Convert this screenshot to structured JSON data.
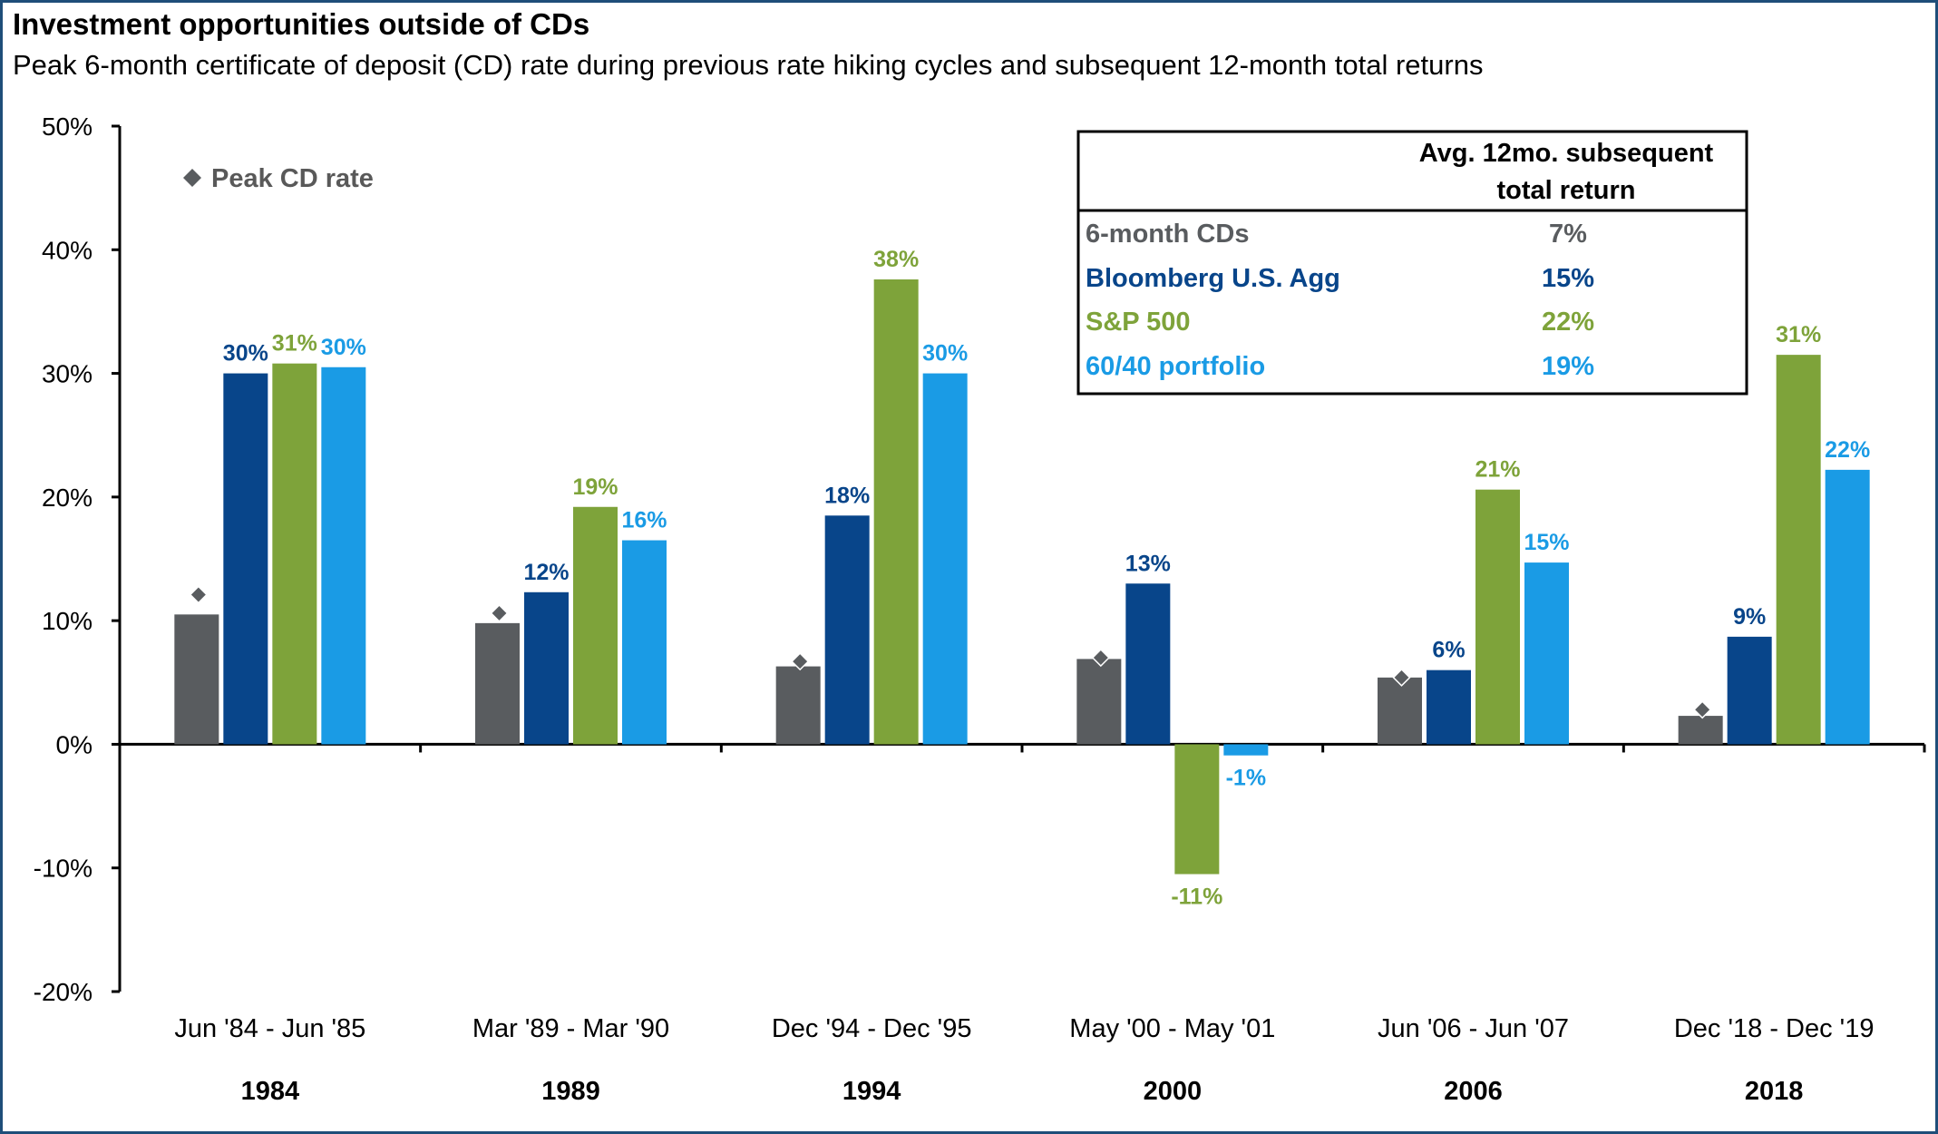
{
  "title": "Investment opportunities outside of CDs",
  "subtitle": "Peak 6-month certificate of deposit (CD) rate during previous rate hiking cycles and subsequent 12-month total returns",
  "colors": {
    "cds": "#595c5f",
    "agg": "#08458a",
    "sp500": "#7ea33a",
    "portfolio": "#1a9be5",
    "marker": "#595c5f"
  },
  "legend": {
    "marker_label": "Peak CD rate",
    "marker_icon": "diamond-icon"
  },
  "summary_box": {
    "header_line1": "Avg. 12mo. subsequent",
    "header_line2": "total return",
    "rows": [
      {
        "name": "6-month CDs",
        "value": "7%",
        "color_key": "cds"
      },
      {
        "name": "Bloomberg U.S. Agg",
        "value": "15%",
        "color_key": "agg"
      },
      {
        "name": "S&P 500",
        "value": "22%",
        "color_key": "sp500"
      },
      {
        "name": "60/40 portfolio",
        "value": "19%",
        "color_key": "portfolio"
      }
    ]
  },
  "chart_data": {
    "type": "bar",
    "title": "Investment opportunities outside of CDs",
    "subtitle": "Peak 6-month certificate of deposit (CD) rate during previous rate hiking cycles and subsequent 12-month total returns",
    "ylim": [
      -20,
      50
    ],
    "yticks": [
      50,
      40,
      30,
      20,
      10,
      0,
      -10,
      -20
    ],
    "ytick_labels": [
      "50%",
      "40%",
      "30%",
      "20%",
      "10%",
      "0%",
      "-10%",
      "-20%"
    ],
    "categories": [
      "Jun '84 - Jun '85",
      "Mar '89 - Mar '90",
      "Dec '94 - Dec '95",
      "May '00 - May '01",
      "Jun '06 - Jun '07",
      "Dec '18 - Dec '19"
    ],
    "category_years": [
      "1984",
      "1989",
      "1994",
      "2000",
      "2006",
      "2018"
    ],
    "series": [
      {
        "name": "6-month CDs",
        "color_key": "cds",
        "values": [
          10.5,
          9.8,
          6.3,
          6.9,
          5.4,
          2.3
        ],
        "labels": [
          "",
          "",
          "",
          "",
          "",
          ""
        ]
      },
      {
        "name": "Bloomberg U.S. Agg",
        "color_key": "agg",
        "values": [
          30.0,
          12.3,
          18.5,
          13.0,
          6.0,
          8.7
        ],
        "labels": [
          "30%",
          "12%",
          "18%",
          "13%",
          "6%",
          "9%"
        ]
      },
      {
        "name": "S&P 500",
        "color_key": "sp500",
        "values": [
          30.8,
          19.2,
          37.6,
          -10.5,
          20.6,
          31.5
        ],
        "labels": [
          "31%",
          "19%",
          "38%",
          "-11%",
          "21%",
          "31%"
        ]
      },
      {
        "name": "60/40 portfolio",
        "color_key": "portfolio",
        "values": [
          30.5,
          16.5,
          30.0,
          -0.9,
          14.7,
          22.2
        ],
        "labels": [
          "30%",
          "16%",
          "30%",
          "-1%",
          "15%",
          "22%"
        ]
      }
    ],
    "peak_cd_rate": [
      12.1,
      10.6,
      6.7,
      7.0,
      5.4,
      2.8
    ],
    "grid": false,
    "legend_position": "top-left"
  }
}
